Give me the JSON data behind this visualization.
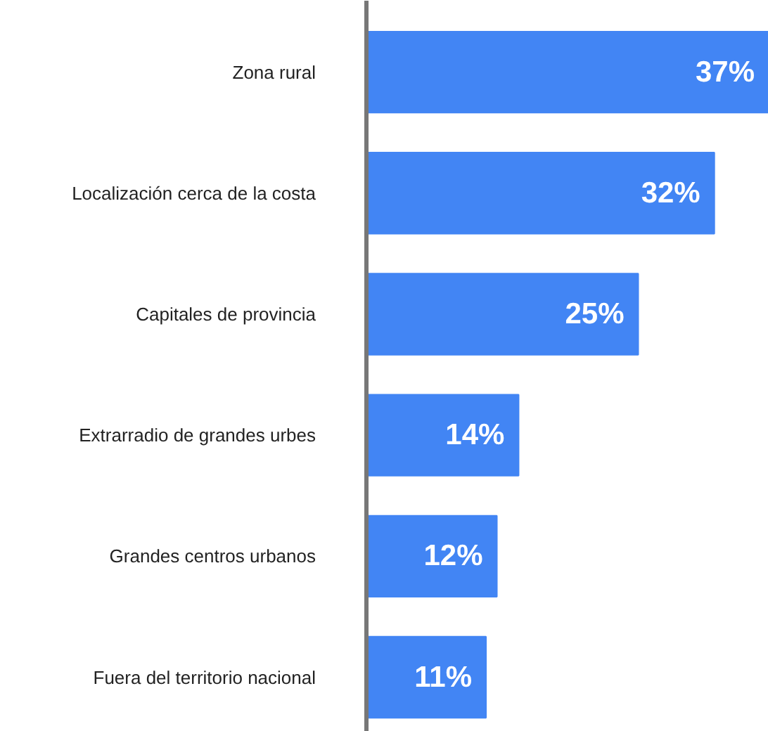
{
  "chart_data": {
    "type": "bar",
    "orientation": "horizontal",
    "categories": [
      "Zona rural",
      "Localización cerca de la costa",
      "Capitales de provincia",
      "Extrarradio de grandes urbes",
      "Grandes centros urbanos",
      "Fuera del territorio nacional"
    ],
    "values": [
      37,
      32,
      25,
      14,
      12,
      11
    ],
    "value_labels": [
      "37%",
      "32%",
      "25%",
      "14%",
      "12%",
      "11%"
    ],
    "color": "#4285f4",
    "grid": false
  }
}
